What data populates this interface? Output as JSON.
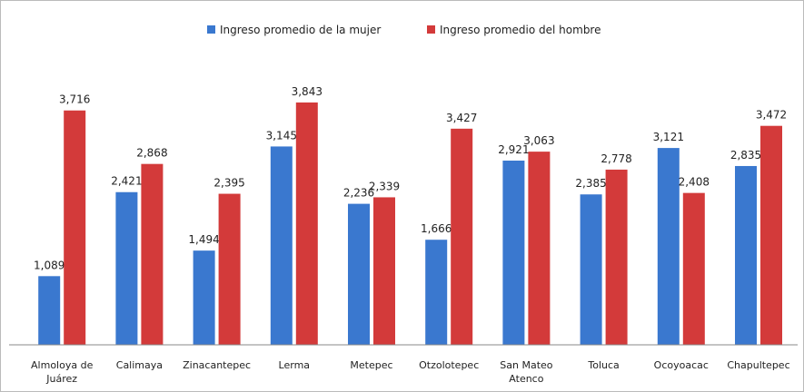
{
  "chart_data": {
    "type": "bar",
    "categories": [
      "Almoloya de Juárez",
      "Calimaya",
      "Zinacantepec",
      "Lerma",
      "Metepec",
      "Otzolotepec",
      "San Mateo Atenco",
      "Toluca",
      "Ocoyoacac",
      "Chapultepec"
    ],
    "series": [
      {
        "name": "Ingreso promedio de la mujer",
        "color": "#3a78cf",
        "values": [
          1089,
          2421,
          1494,
          3145,
          2236,
          1666,
          2921,
          2385,
          3121,
          2835
        ],
        "value_labels": [
          "1,089",
          "2,421",
          "1,494",
          "3,145",
          "2,236",
          "1,666",
          "2,921",
          "2,385",
          "3,121",
          "2,835"
        ]
      },
      {
        "name": "Ingreso promedio del hombre",
        "color": "#d33a3a",
        "values": [
          3716,
          2868,
          2395,
          3843,
          2339,
          3427,
          3063,
          2778,
          2408,
          3472
        ],
        "value_labels": [
          "3,716",
          "2,868",
          "2,395",
          "3,843",
          "2,339",
          "3,427",
          "3,063",
          "2,778",
          "2,408",
          "3,472"
        ]
      }
    ],
    "ylim": [
      0,
      4000
    ],
    "legend": "top"
  }
}
